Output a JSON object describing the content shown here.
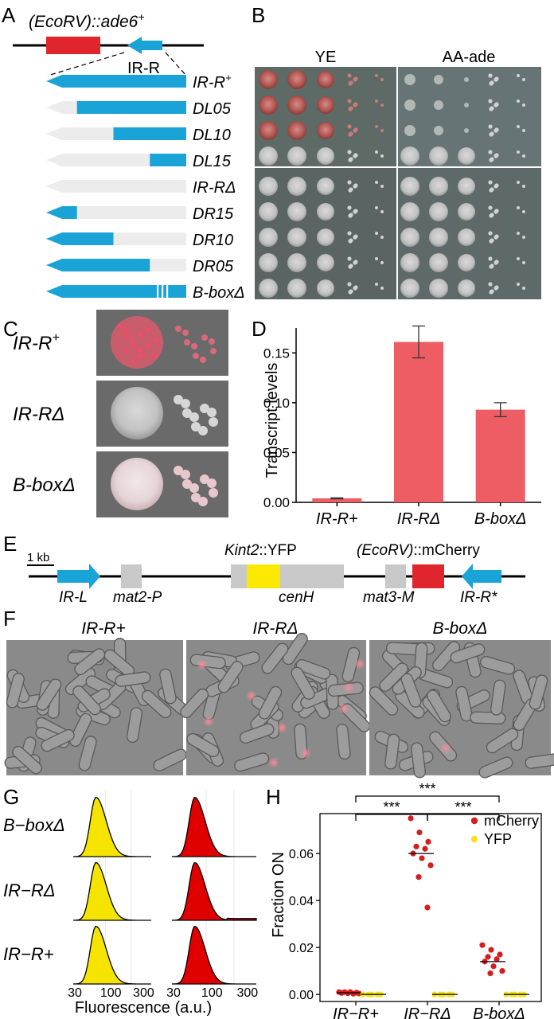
{
  "panel_labels": [
    "A",
    "B",
    "C",
    "D",
    "E",
    "F",
    "G",
    "H"
  ],
  "panel_a": {
    "locus_label": "(EcoRV)::ade6",
    "locus_sup": "+",
    "element_label": "IR-R",
    "constructs": [
      {
        "name": "IR-R",
        "sup": "+",
        "keep": "full"
      },
      {
        "name": "DL05",
        "sup": "",
        "keep": "right",
        "frac": 0.78
      },
      {
        "name": "DL10",
        "sup": "",
        "keep": "right",
        "frac": 0.52
      },
      {
        "name": "DL15",
        "sup": "",
        "keep": "right",
        "frac": 0.26
      },
      {
        "name": "IR-RΔ",
        "sup": "",
        "keep": "none"
      },
      {
        "name": "DR15",
        "sup": "",
        "keep": "left",
        "frac": 0.22
      },
      {
        "name": "DR10",
        "sup": "",
        "keep": "left",
        "frac": 0.48
      },
      {
        "name": "DR05",
        "sup": "",
        "keep": "left",
        "frac": 0.74
      },
      {
        "name": "B-boxΔ",
        "sup": "",
        "keep": "bbox"
      }
    ],
    "colors": {
      "ade6": "#e0262c",
      "ir": "#1aa3d6",
      "ghost": "#ececec"
    }
  },
  "panel_b": {
    "media": [
      "YE",
      "AA-ade"
    ],
    "spot_rows": [
      {
        "type": "red"
      },
      {
        "type": "red"
      },
      {
        "type": "red"
      },
      {
        "type": "white"
      },
      {
        "type": "white"
      },
      {
        "type": "white"
      },
      {
        "type": "white"
      },
      {
        "type": "white"
      },
      {
        "type": "white"
      }
    ]
  },
  "panel_c": {
    "rows": [
      {
        "name": "IR-R",
        "sup": "+",
        "type": "red"
      },
      {
        "name": "IR-RΔ",
        "sup": "",
        "type": "white"
      },
      {
        "name": "B-boxΔ",
        "sup": "",
        "type": "pinkish"
      }
    ]
  },
  "chart_data": [
    {
      "type": "bar",
      "ylabel": "Transcript levels",
      "categories": [
        "IR-R+",
        "IR-RΔ",
        "B-boxΔ"
      ],
      "values": [
        0.004,
        0.161,
        0.093
      ],
      "errors": [
        0.0005,
        0.016,
        0.007
      ],
      "yticks": [
        "0.00",
        "0.05",
        "0.10",
        "0.15"
      ],
      "ytick_values": [
        0,
        0.05,
        0.1,
        0.15
      ],
      "ylim": [
        0,
        0.175
      ],
      "color": "#ee5c64"
    },
    {
      "type": "area",
      "xlabel": "Fluorescence (a.u.)",
      "xticks": [
        "30",
        "100",
        "300",
        "30",
        "100",
        "300"
      ],
      "row_labels": [
        "B−boxΔ",
        "IR−RΔ",
        "IR−R+"
      ],
      "columns": [
        "YFP",
        "mCherry"
      ],
      "colors": {
        "yfp": "#f5e400",
        "mcherry": "#e00000"
      }
    },
    {
      "type": "scatter",
      "ylabel": "Fraction ON",
      "categories": [
        "IR−R+",
        "IR−RΔ",
        "B-boxΔ"
      ],
      "yticks": [
        "0.00",
        "0.02",
        "0.04",
        "0.06"
      ],
      "ytick_values": [
        0,
        0.02,
        0.04,
        0.06
      ],
      "ylim": [
        -0.003,
        0.077
      ],
      "significance": [
        "***",
        "***",
        "***"
      ],
      "series": [
        {
          "name": "mCherry",
          "color": "#d41e1e",
          "groups": [
            [
              0.001,
              0.0005,
              0.0008,
              0.001,
              0.0003,
              0.0006,
              0.001,
              0.0004
            ],
            [
              0.075,
              0.069,
              0.065,
              0.063,
              0.062,
              0.06,
              0.058,
              0.055,
              0.05,
              0.037
            ],
            [
              0.021,
              0.019,
              0.017,
              0.016,
              0.015,
              0.014,
              0.012,
              0.01,
              0.009
            ]
          ],
          "medians": [
            0.0007,
            0.06,
            0.014
          ]
        },
        {
          "name": "YFP",
          "color": "#f2e21c",
          "groups": [
            [
              0,
              0,
              0,
              0,
              0
            ],
            [
              0,
              0,
              0,
              0,
              0
            ],
            [
              0,
              0,
              0,
              0,
              0
            ]
          ],
          "medians": [
            0,
            0,
            0
          ]
        }
      ]
    }
  ],
  "panel_e": {
    "scale_label": "1 kb",
    "ir_l": "IR-L",
    "mat2p": "mat2-P",
    "kint2_label": "Kint2",
    "kint2_suffix": "::YFP",
    "cenh": "cenH",
    "ecorv_label": "(EcoRV)",
    "ecorv_suffix": "::mCherry",
    "mat3m": "mat3-M",
    "ir_r": "IR-R*"
  },
  "panel_f": {
    "titles": [
      "IR-R+",
      "IR-RΔ",
      "B-boxΔ"
    ]
  }
}
